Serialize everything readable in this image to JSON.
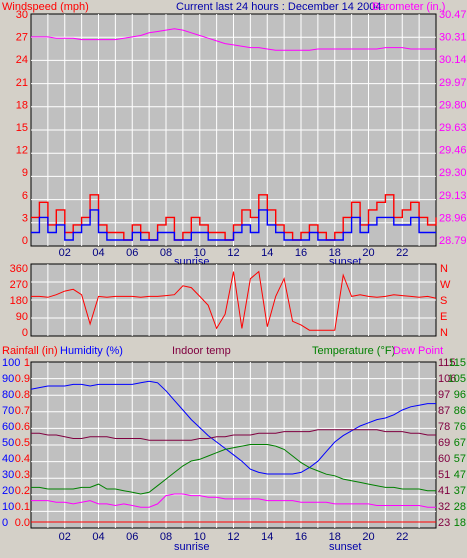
{
  "panel_top": {
    "title": "Current last 24 hours : December 14 2004",
    "left_label": "Windspeed (mph)",
    "right_label": "Barometer (in.)",
    "left_ticks": [
      "30",
      "27",
      "24",
      "21",
      "18",
      "15",
      "12",
      "9",
      "6",
      "3",
      "0"
    ],
    "right_ticks": [
      "30.47",
      "30.31",
      "30.14",
      "29.97",
      "29.80",
      "29.63",
      "29.46",
      "29.30",
      "29.13",
      "28.96",
      "28.79"
    ],
    "x_ticks": [
      "02",
      "04",
      "06",
      "08",
      "10",
      "12",
      "14",
      "16",
      "18",
      "20",
      "22"
    ],
    "sunrise_label": "sunrise",
    "sunset_label": "sunset"
  },
  "panel_mid": {
    "left_ticks": [
      "360",
      "270",
      "180",
      "90",
      "0"
    ],
    "right_ticks": [
      "N",
      "W",
      "S",
      "E",
      "N"
    ]
  },
  "panel_bot": {
    "rain_label": "Rainfall (in)",
    "humidity_label": "Humidity (%)",
    "indoor_label": "Indoor temp",
    "temp_label": "Temperature (°F)",
    "dew_label": "Dew Point",
    "humidity_ticks": [
      "100",
      "90",
      "80",
      "70",
      "60",
      "50",
      "40",
      "30",
      "20",
      "10",
      "0"
    ],
    "rain_ticks": [
      "1",
      "0.9",
      "0.8",
      "0.7",
      "0.6",
      "0.5",
      "0.4",
      "0.3",
      "0.2",
      "0.1",
      "0.0"
    ],
    "indoor_ticks": [
      "115",
      "106",
      "97",
      "87",
      "78",
      "69",
      "60",
      "51",
      "41",
      "32",
      "23"
    ],
    "temp_ticks": [
      "115",
      "105",
      "96",
      "86",
      "76",
      "67",
      "57",
      "47",
      "37",
      "28",
      "18"
    ],
    "x_ticks": [
      "02",
      "04",
      "06",
      "08",
      "10",
      "12",
      "14",
      "16",
      "18",
      "20",
      "22"
    ],
    "sunrise_label": "sunrise",
    "sunset_label": "sunset"
  },
  "colors": {
    "windspeed": "#ff0000",
    "gust": "#0000ff",
    "barometer": "#ff00ff",
    "direction": "#ff0000",
    "humidity": "#0000ff",
    "indoor": "#800040",
    "temperature": "#008000",
    "dewpoint": "#ff00ff",
    "rainfall": "#ff0000"
  },
  "chart_data": [
    {
      "type": "line",
      "title": "Current last 24 hours : December 14 2004",
      "xlabel": "",
      "ylabel": "Windspeed (mph)",
      "ylim": [
        0,
        30
      ],
      "y2label": "Barometer (in.)",
      "y2lim": [
        28.79,
        30.47
      ],
      "xlim": [
        0,
        24
      ],
      "x": [
        0,
        0.5,
        1,
        1.5,
        2,
        2.5,
        3,
        3.5,
        4,
        4.5,
        5,
        5.5,
        6,
        6.5,
        7,
        7.5,
        8,
        8.5,
        9,
        9.5,
        10,
        10.5,
        11,
        11.5,
        12,
        12.5,
        13,
        13.5,
        14,
        14.5,
        15,
        15.5,
        16,
        16.5,
        17,
        17.5,
        18,
        18.5,
        19,
        19.5,
        20,
        20.5,
        21,
        21.5,
        22,
        22.5,
        23,
        23.5,
        24
      ],
      "series": [
        {
          "name": "Windspeed (mph)",
          "axis": "left",
          "values": [
            3,
            5,
            2,
            4,
            1,
            2,
            3,
            6,
            2,
            1,
            1,
            0,
            2,
            1,
            0,
            2,
            3,
            0,
            1,
            3,
            2,
            1,
            1,
            0,
            2,
            4,
            3,
            6,
            4,
            2,
            1,
            0,
            1,
            2,
            1,
            0,
            1,
            3,
            5,
            2,
            4,
            5,
            6,
            3,
            4,
            5,
            3,
            2,
            3
          ]
        },
        {
          "name": "",
          "axis": "left",
          "values": [
            1,
            3,
            1,
            2,
            0,
            1,
            2,
            4,
            1,
            0,
            0,
            0,
            1,
            0,
            0,
            1,
            1,
            0,
            0,
            1,
            1,
            0,
            0,
            0,
            1,
            2,
            1,
            4,
            2,
            1,
            0,
            0,
            0,
            1,
            0,
            0,
            0,
            1,
            3,
            1,
            2,
            3,
            3,
            2,
            2,
            3,
            1,
            1,
            1
          ]
        },
        {
          "name": "Barometer (in.)",
          "axis": "right",
          "values": [
            30.3,
            30.3,
            30.3,
            30.29,
            30.29,
            30.29,
            30.28,
            30.28,
            30.28,
            30.28,
            30.28,
            30.29,
            30.3,
            30.31,
            30.33,
            30.34,
            30.35,
            30.36,
            30.35,
            30.33,
            30.31,
            30.29,
            30.27,
            30.25,
            30.24,
            30.23,
            30.22,
            30.22,
            30.21,
            30.2,
            30.2,
            30.2,
            30.2,
            30.2,
            30.21,
            30.21,
            30.21,
            30.21,
            30.21,
            30.21,
            30.21,
            30.21,
            30.22,
            30.22,
            30.22,
            30.21,
            30.21,
            30.21,
            30.21
          ]
        }
      ]
    },
    {
      "type": "line",
      "title": "",
      "xlabel": "",
      "ylabel": "",
      "ylim": [
        0,
        360
      ],
      "xlim": [
        0,
        24
      ],
      "x": [
        0,
        0.5,
        1,
        1.5,
        2,
        2.5,
        3,
        3.5,
        4,
        4.5,
        5,
        5.5,
        6,
        6.5,
        7,
        7.5,
        8,
        8.5,
        9,
        9.5,
        10,
        10.5,
        11,
        11.5,
        12,
        12.5,
        13,
        13.5,
        14,
        14.5,
        15,
        15.5,
        16,
        16.5,
        17,
        17.5,
        18,
        18.5,
        19,
        19.5,
        20,
        20.5,
        21,
        21.5,
        22,
        22.5,
        23,
        23.5,
        24
      ],
      "series": [
        {
          "name": "",
          "values": [
            200,
            200,
            195,
            210,
            230,
            240,
            210,
            45,
            200,
            195,
            200,
            200,
            200,
            195,
            200,
            200,
            205,
            210,
            260,
            250,
            200,
            150,
            20,
            100,
            340,
            20,
            300,
            340,
            30,
            200,
            300,
            60,
            40,
            10,
            10,
            10,
            10,
            320,
            200,
            210,
            200,
            195,
            200,
            210,
            205,
            200,
            195,
            200,
            190
          ]
        }
      ]
    },
    {
      "type": "line",
      "title": "",
      "xlabel": "",
      "ylabel": "Humidity (%)",
      "ylim": [
        0,
        100
      ],
      "y2label": "Temperature (°F)",
      "y2lim": [
        18,
        115
      ],
      "xlim": [
        0,
        24
      ],
      "x": [
        0,
        0.5,
        1,
        1.5,
        2,
        2.5,
        3,
        3.5,
        4,
        4.5,
        5,
        5.5,
        6,
        6.5,
        7,
        7.5,
        8,
        8.5,
        9,
        9.5,
        10,
        10.5,
        11,
        11.5,
        12,
        12.5,
        13,
        13.5,
        14,
        14.5,
        15,
        15.5,
        16,
        16.5,
        17,
        17.5,
        18,
        18.5,
        19,
        19.5,
        20,
        20.5,
        21,
        21.5,
        22,
        22.5,
        23,
        23.5,
        24
      ],
      "series": [
        {
          "name": "Humidity (%)",
          "axis": "left",
          "values": [
            83,
            84,
            85,
            85,
            85,
            86,
            86,
            85,
            86,
            86,
            86,
            86,
            86,
            87,
            88,
            87,
            82,
            76,
            70,
            64,
            59,
            54,
            50,
            46,
            42,
            38,
            33,
            31,
            30,
            30,
            30,
            30,
            31,
            34,
            38,
            44,
            50,
            54,
            57,
            60,
            62,
            64,
            65,
            67,
            70,
            72,
            73,
            74,
            74
          ]
        },
        {
          "name": "Indoor temp",
          "axis": "right",
          "y2lim": [
            23,
            115
          ],
          "values": [
            74,
            74,
            73,
            73,
            72,
            71,
            71,
            72,
            72,
            72,
            71,
            71,
            71,
            71,
            70,
            70,
            70,
            70,
            70,
            70,
            71,
            71,
            72,
            72,
            73,
            73,
            73,
            74,
            74,
            74,
            75,
            75,
            75,
            75,
            76,
            76,
            76,
            76,
            76,
            76,
            76,
            76,
            75,
            75,
            75,
            74,
            74,
            73,
            73
          ]
        },
        {
          "name": "Temperature (°F)",
          "axis": "right",
          "values": [
            39,
            39,
            38,
            38,
            38,
            38,
            39,
            39,
            41,
            38,
            38,
            37,
            36,
            35,
            36,
            40,
            44,
            48,
            52,
            55,
            56,
            58,
            60,
            62,
            63,
            64,
            65,
            65,
            65,
            64,
            62,
            58,
            54,
            51,
            49,
            47,
            46,
            44,
            43,
            42,
            41,
            40,
            39,
            39,
            38,
            38,
            38,
            37,
            37
          ]
        },
        {
          "name": "Dew Point",
          "axis": "right",
          "values": [
            31,
            31,
            31,
            30,
            30,
            29,
            30,
            31,
            29,
            29,
            28,
            29,
            28,
            27,
            27,
            29,
            34,
            35,
            35,
            34,
            34,
            33,
            33,
            32,
            32,
            32,
            32,
            32,
            31,
            31,
            31,
            31,
            30,
            30,
            30,
            30,
            29,
            29,
            29,
            29,
            29,
            28,
            28,
            28,
            28,
            28,
            28,
            27,
            27
          ]
        },
        {
          "name": "Rainfall (in)",
          "axis": "rain",
          "ylim": [
            0,
            1
          ],
          "values": [
            0,
            0,
            0,
            0,
            0,
            0,
            0,
            0,
            0,
            0,
            0,
            0,
            0,
            0,
            0,
            0,
            0,
            0,
            0,
            0,
            0,
            0,
            0,
            0,
            0,
            0,
            0,
            0,
            0,
            0,
            0,
            0,
            0,
            0,
            0,
            0,
            0,
            0,
            0,
            0,
            0,
            0,
            0,
            0,
            0,
            0,
            0,
            0,
            0
          ]
        }
      ]
    }
  ]
}
